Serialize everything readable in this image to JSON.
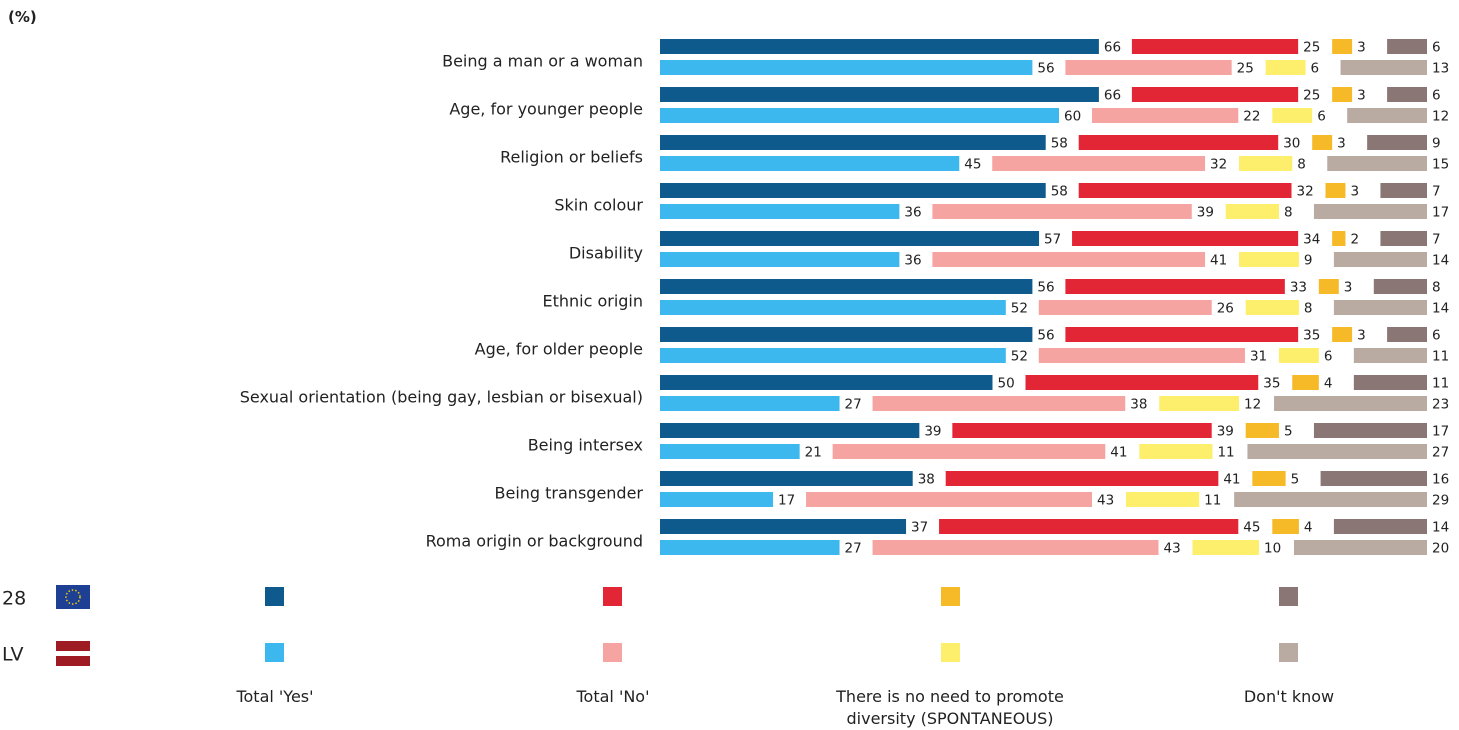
{
  "chart_data": {
    "type": "bar",
    "unit_label": "(%)",
    "categories": [
      "Being a man or a woman",
      "Age, for younger people",
      "Religion or beliefs",
      "Skin colour",
      "Disability",
      "Ethnic origin",
      "Age, for older people",
      "Sexual orientation (being gay, lesbian or bisexual)",
      "Being intersex",
      "Being transgender",
      "Roma origin or background"
    ],
    "groups": [
      "28",
      "LV"
    ],
    "series": [
      {
        "name": "Total 'Yes'",
        "colors": [
          "#0f5a8c",
          "#3db8ef"
        ],
        "values": [
          [
            66,
            66,
            58,
            58,
            57,
            56,
            56,
            50,
            39,
            38,
            37
          ],
          [
            56,
            60,
            45,
            36,
            36,
            52,
            52,
            27,
            21,
            17,
            27
          ]
        ]
      },
      {
        "name": "Total 'No'",
        "colors": [
          "#e32636",
          "#f5a4a2"
        ],
        "values": [
          [
            25,
            25,
            30,
            32,
            34,
            33,
            35,
            35,
            39,
            41,
            45
          ],
          [
            25,
            22,
            32,
            39,
            41,
            26,
            31,
            38,
            41,
            43,
            43
          ]
        ]
      },
      {
        "name": "There is no need to promote diversity (SPONTANEOUS)",
        "colors": [
          "#f6b928",
          "#fdee6b"
        ],
        "values": [
          [
            3,
            3,
            3,
            3,
            2,
            3,
            3,
            4,
            5,
            5,
            4
          ],
          [
            6,
            6,
            8,
            8,
            9,
            8,
            6,
            12,
            11,
            11,
            10
          ]
        ]
      },
      {
        "name": "Don't know",
        "colors": [
          "#8a7674",
          "#b9aaa2"
        ],
        "values": [
          [
            6,
            6,
            9,
            7,
            7,
            8,
            6,
            11,
            17,
            16,
            14
          ],
          [
            13,
            12,
            15,
            17,
            14,
            14,
            11,
            23,
            27,
            29,
            20
          ]
        ]
      }
    ]
  }
}
